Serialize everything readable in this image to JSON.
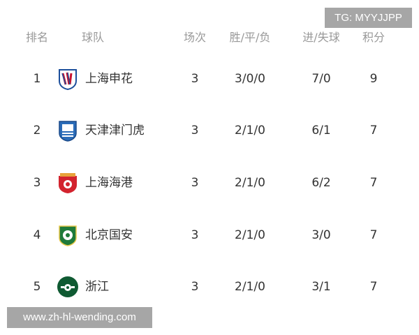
{
  "watermark_top": "TG: MYYJJPP",
  "watermark_bottom": "www.zh-hl-wending.com",
  "headers": {
    "rank": "排名",
    "team": "球队",
    "played": "场次",
    "wdl": "胜/平/负",
    "goals": "进/失球",
    "points": "积分"
  },
  "rows": [
    {
      "rank": "1",
      "team": "上海申花",
      "played": "3",
      "wdl": "3/0/0",
      "goals": "7/0",
      "points": "9",
      "logo": "shanghai-shenhua-logo"
    },
    {
      "rank": "2",
      "team": "天津津门虎",
      "played": "3",
      "wdl": "2/1/0",
      "goals": "6/1",
      "points": "7",
      "logo": "tianjin-jinmen-tiger-logo"
    },
    {
      "rank": "3",
      "team": "上海海港",
      "played": "3",
      "wdl": "2/1/0",
      "goals": "6/2",
      "points": "7",
      "logo": "shanghai-port-logo"
    },
    {
      "rank": "4",
      "team": "北京国安",
      "played": "3",
      "wdl": "2/1/0",
      "goals": "3/0",
      "points": "7",
      "logo": "beijing-guoan-logo"
    },
    {
      "rank": "5",
      "team": "浙江",
      "played": "3",
      "wdl": "2/1/0",
      "goals": "3/1",
      "points": "7",
      "logo": "zhejiang-logo"
    }
  ]
}
